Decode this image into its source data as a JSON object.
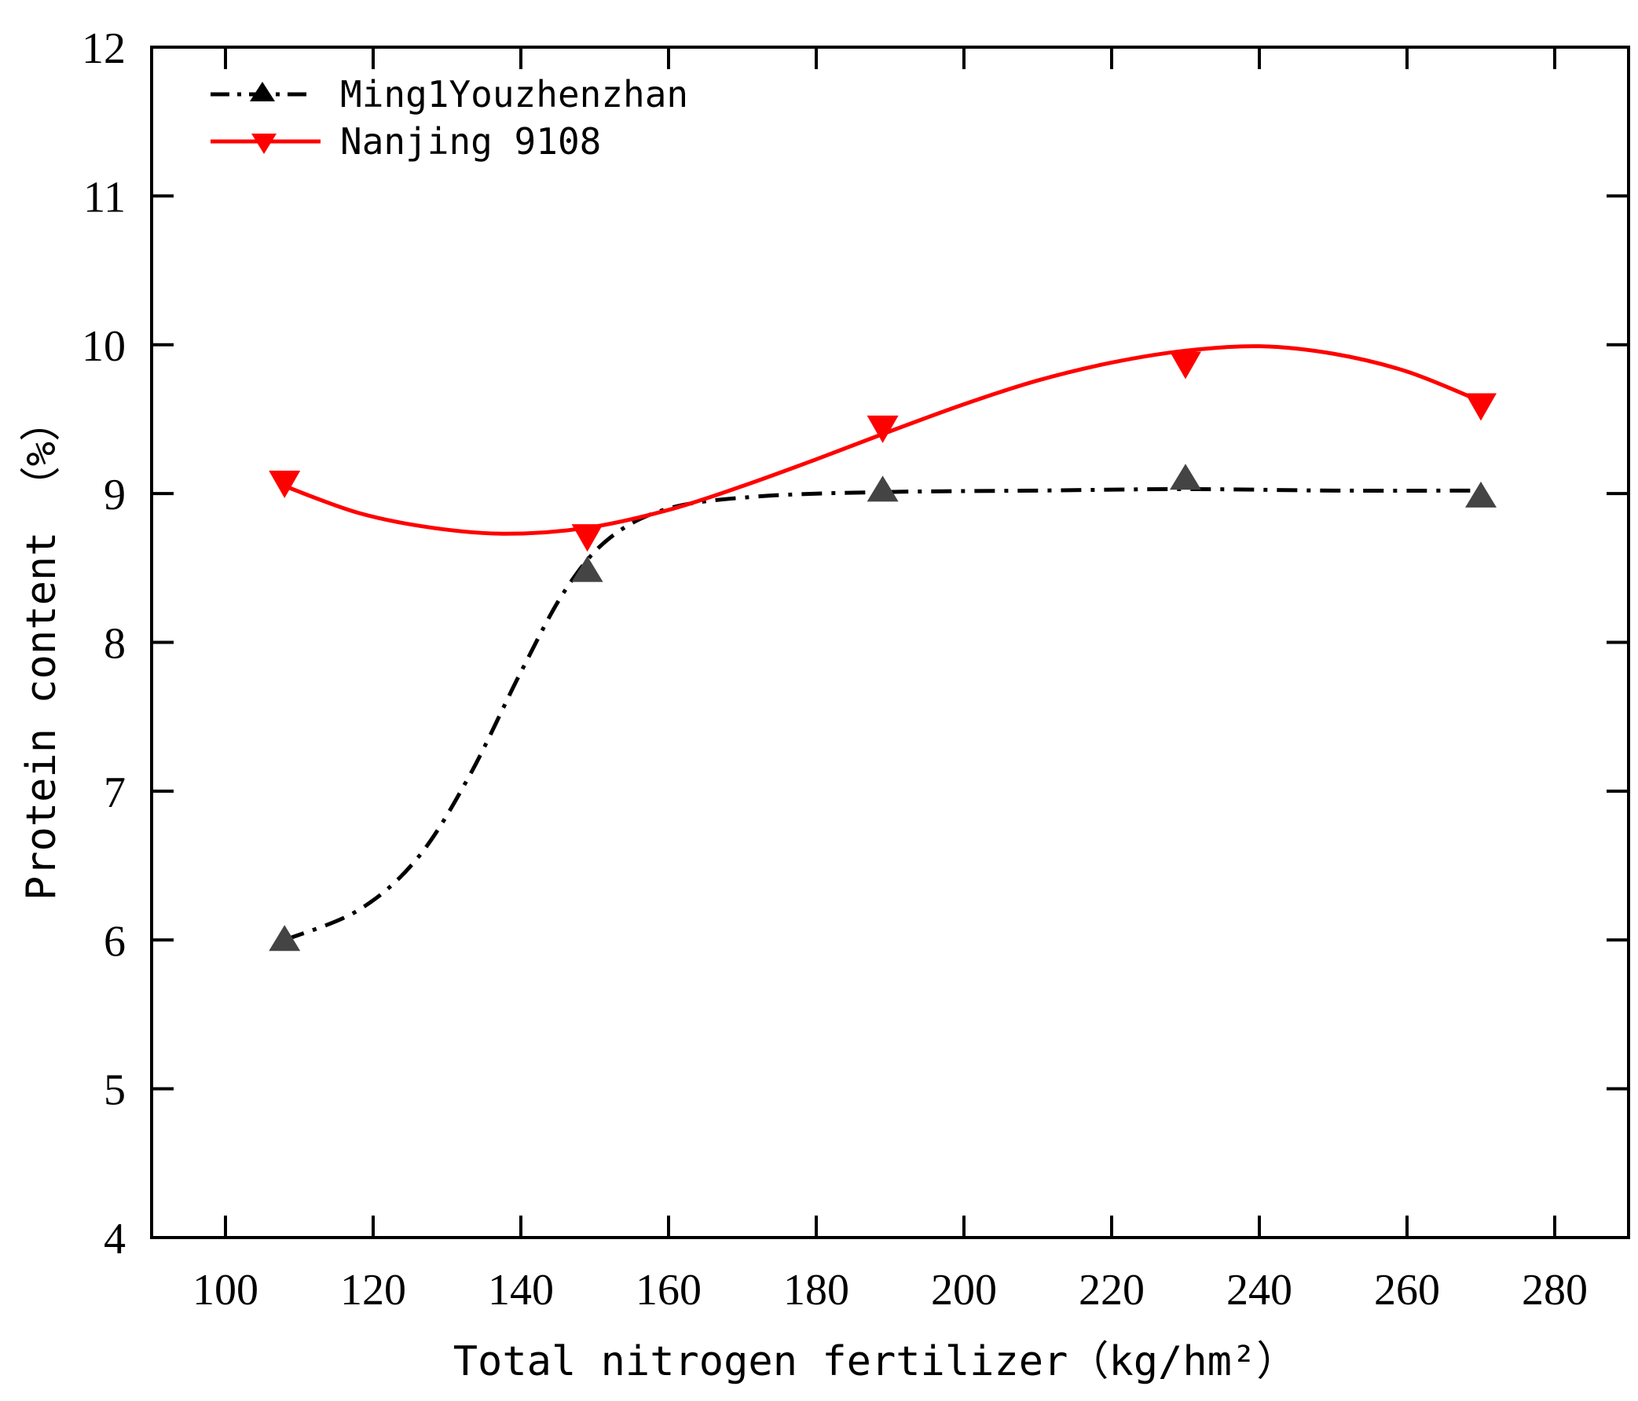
{
  "chart_data": {
    "type": "line",
    "title": "",
    "xlabel": "Total nitrogen fertilizer（kg/hm²）",
    "ylabel": "Protein content （%）",
    "xlim": [
      90,
      290
    ],
    "ylim": [
      4,
      12
    ],
    "xticks": [
      100,
      120,
      140,
      160,
      180,
      200,
      220,
      240,
      260,
      280
    ],
    "yticks": [
      4,
      5,
      6,
      7,
      8,
      9,
      10,
      11,
      12
    ],
    "grid": false,
    "legend_position": "top-left",
    "series": [
      {
        "name": "Ming1Youzhenzhan",
        "color": "#000000",
        "marker_color": "#444444",
        "marker": "triangle-up",
        "line_style": "dash-dot",
        "x": [
          108,
          149,
          189,
          230,
          270
        ],
        "y": [
          6.0,
          8.48,
          9.02,
          9.1,
          8.98
        ],
        "fit_curve": [
          [
            108,
            6.0
          ],
          [
            118,
            6.2
          ],
          [
            126,
            6.55
          ],
          [
            133,
            7.1
          ],
          [
            140,
            7.8
          ],
          [
            146,
            8.35
          ],
          [
            152,
            8.7
          ],
          [
            160,
            8.9
          ],
          [
            172,
            8.98
          ],
          [
            189,
            9.01
          ],
          [
            210,
            9.02
          ],
          [
            230,
            9.03
          ],
          [
            250,
            9.02
          ],
          [
            270,
            9.02
          ]
        ]
      },
      {
        "name": "Nanjing 9108",
        "color": "#ff0000",
        "marker_color": "#ff0000",
        "marker": "triangle-down",
        "line_style": "solid",
        "x": [
          108,
          149,
          189,
          230,
          270
        ],
        "y": [
          9.08,
          8.72,
          9.45,
          9.88,
          9.6
        ],
        "fit_curve": [
          [
            108,
            9.05
          ],
          [
            118,
            8.87
          ],
          [
            128,
            8.77
          ],
          [
            138,
            8.73
          ],
          [
            149,
            8.77
          ],
          [
            160,
            8.89
          ],
          [
            170,
            9.05
          ],
          [
            180,
            9.23
          ],
          [
            189,
            9.4
          ],
          [
            200,
            9.6
          ],
          [
            210,
            9.76
          ],
          [
            220,
            9.88
          ],
          [
            230,
            9.96
          ],
          [
            240,
            9.99
          ],
          [
            250,
            9.94
          ],
          [
            260,
            9.82
          ],
          [
            270,
            9.62
          ]
        ]
      }
    ]
  }
}
